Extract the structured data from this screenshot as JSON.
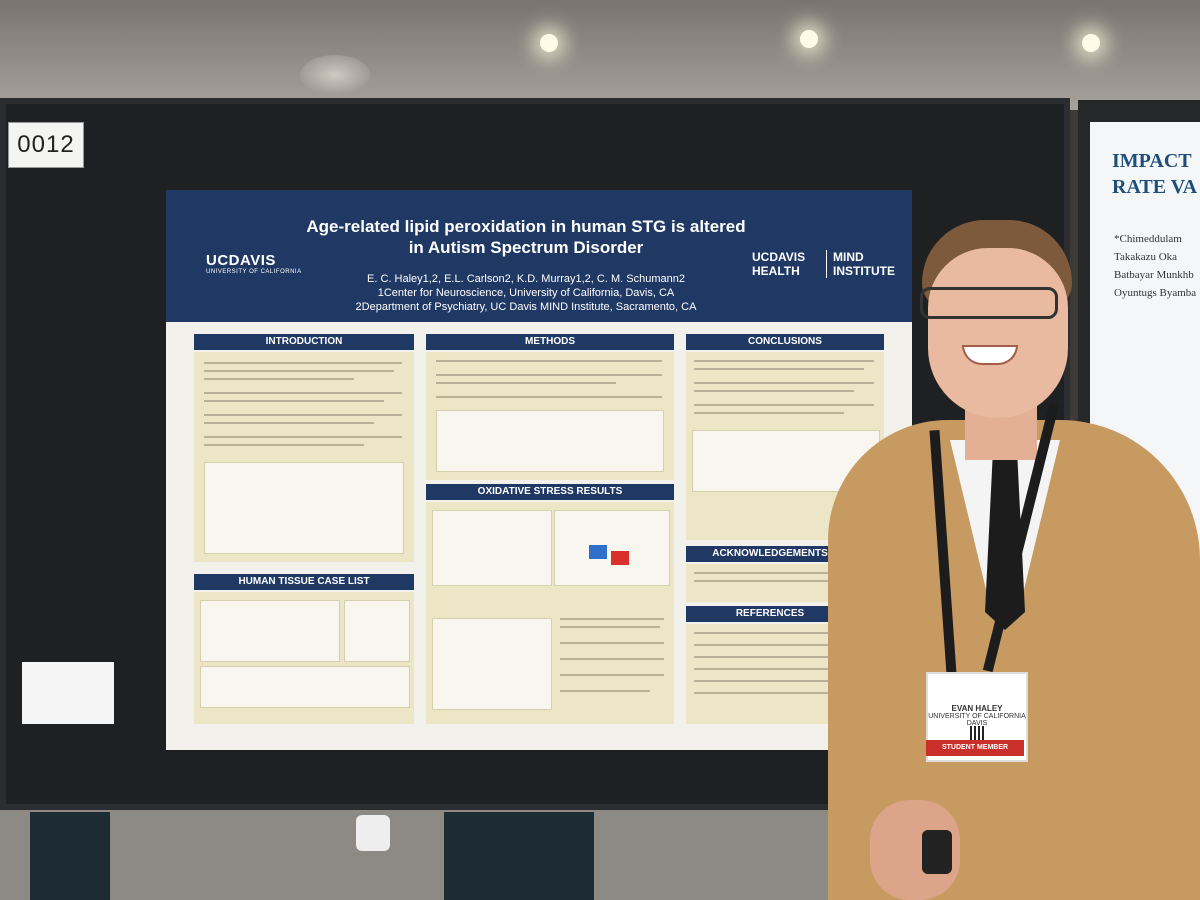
{
  "board_number": "0012",
  "poster": {
    "title": "Age-related lipid peroxidation in human STG is altered in Autism Spectrum Disorder",
    "authors": "E. C. Haley1,2, E.L. Carlson2, K.D. Murray1,2, C. M. Schumann2",
    "affiliation_1": "1Center for Neuroscience, University of California, Davis, CA",
    "affiliation_2": "2Department of Psychiatry, UC Davis MIND Institute, Sacramento, CA",
    "logo_left": "UCDAVIS",
    "logo_left_sub": "UNIVERSITY OF CALIFORNIA",
    "logo_right_a": "UCDAVIS",
    "logo_right_b": "HEALTH",
    "logo_right_c": "MIND",
    "logo_right_d": "INSTITUTE",
    "sections": {
      "introduction": "INTRODUCTION",
      "methods": "METHODS",
      "conclusions": "CONCLUSIONS",
      "oxidative": "OXIDATIVE STRESS RESULTS",
      "human_tissue": "HUMAN TISSUE CASE LIST",
      "acknowledgements": "ACKNOWLEDGEMENTS",
      "references": "REFERENCES"
    }
  },
  "badge": {
    "name": "EVAN HALEY",
    "org": "UNIVERSITY OF CALIFORNIA DAVIS",
    "footer": "STUDENT MEMBER"
  },
  "right_poster": {
    "title_line1": "IMPACT",
    "title_line2": "RATE VA",
    "line1": "*Chimeddulam",
    "line2": "Takakazu Oka",
    "line3": "Batbayar Munkhb",
    "line4": "Oyuntugs Byamba"
  }
}
